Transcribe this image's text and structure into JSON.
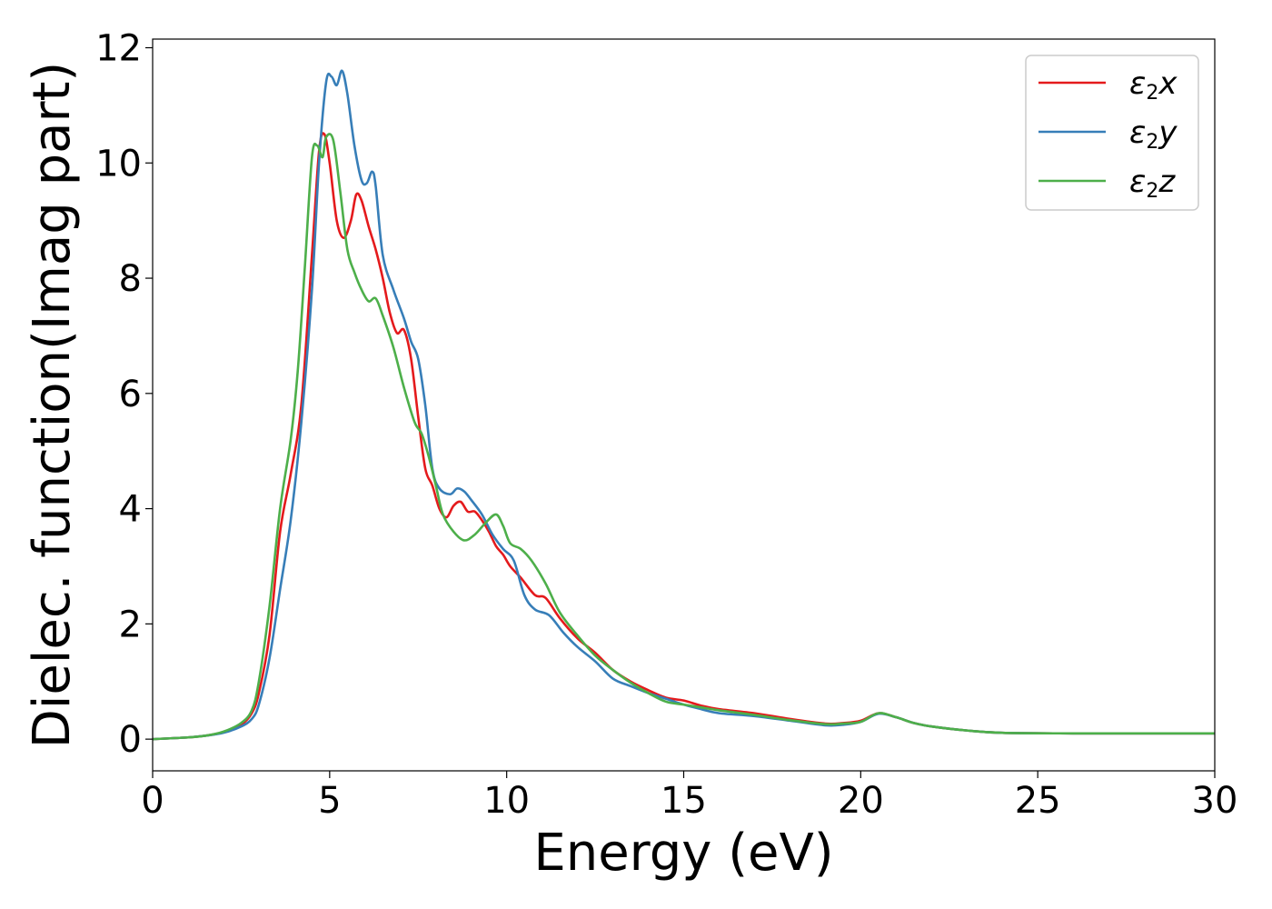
{
  "chart_data": {
    "type": "line",
    "xlabel": "Energy (eV)",
    "ylabel": "Dielec. function(Imag part)",
    "xlim": [
      0,
      30
    ],
    "ylim": [
      -0.55,
      12.15
    ],
    "xticks": [
      0,
      5,
      10,
      15,
      20,
      25,
      30
    ],
    "yticks": [
      0,
      2,
      4,
      6,
      8,
      10,
      12
    ],
    "grid": false,
    "legend_position": "top-right",
    "series": [
      {
        "name": "ε2x",
        "label_base": "ε",
        "label_sub": "2",
        "label_suffix": "x",
        "color": "#e41a1c",
        "points": [
          [
            0,
            0
          ],
          [
            1,
            0.03
          ],
          [
            1.5,
            0.06
          ],
          [
            2,
            0.12
          ],
          [
            2.5,
            0.25
          ],
          [
            2.8,
            0.45
          ],
          [
            3.0,
            0.8
          ],
          [
            3.3,
            1.8
          ],
          [
            3.6,
            3.6
          ],
          [
            3.9,
            4.6
          ],
          [
            4.2,
            5.8
          ],
          [
            4.5,
            8.4
          ],
          [
            4.7,
            10.2
          ],
          [
            4.85,
            10.5
          ],
          [
            5.0,
            10.0
          ],
          [
            5.2,
            9.0
          ],
          [
            5.4,
            8.7
          ],
          [
            5.6,
            9.0
          ],
          [
            5.75,
            9.45
          ],
          [
            5.9,
            9.35
          ],
          [
            6.1,
            8.9
          ],
          [
            6.3,
            8.5
          ],
          [
            6.5,
            8.0
          ],
          [
            6.7,
            7.4
          ],
          [
            6.9,
            7.05
          ],
          [
            7.1,
            7.1
          ],
          [
            7.3,
            6.6
          ],
          [
            7.5,
            5.6
          ],
          [
            7.7,
            4.7
          ],
          [
            7.9,
            4.4
          ],
          [
            8.1,
            4.0
          ],
          [
            8.3,
            3.85
          ],
          [
            8.5,
            4.05
          ],
          [
            8.7,
            4.12
          ],
          [
            8.9,
            3.95
          ],
          [
            9.1,
            3.95
          ],
          [
            9.3,
            3.8
          ],
          [
            9.5,
            3.6
          ],
          [
            9.7,
            3.35
          ],
          [
            9.9,
            3.2
          ],
          [
            10.1,
            3.0
          ],
          [
            10.4,
            2.8
          ],
          [
            10.8,
            2.5
          ],
          [
            11.1,
            2.45
          ],
          [
            11.5,
            2.1
          ],
          [
            12,
            1.75
          ],
          [
            12.5,
            1.5
          ],
          [
            13,
            1.2
          ],
          [
            13.5,
            1.0
          ],
          [
            14,
            0.85
          ],
          [
            14.5,
            0.72
          ],
          [
            15,
            0.67
          ],
          [
            15.5,
            0.58
          ],
          [
            16,
            0.52
          ],
          [
            17,
            0.45
          ],
          [
            18,
            0.35
          ],
          [
            19,
            0.27
          ],
          [
            19.5,
            0.28
          ],
          [
            20,
            0.32
          ],
          [
            20.5,
            0.45
          ],
          [
            21,
            0.38
          ],
          [
            21.5,
            0.28
          ],
          [
            22,
            0.22
          ],
          [
            23,
            0.15
          ],
          [
            24,
            0.11
          ],
          [
            26,
            0.1
          ],
          [
            28,
            0.1
          ],
          [
            30,
            0.1
          ]
        ]
      },
      {
        "name": "ε2y",
        "label_base": "ε",
        "label_sub": "2",
        "label_suffix": "y",
        "color": "#377eb8",
        "points": [
          [
            0,
            0
          ],
          [
            1,
            0.03
          ],
          [
            1.5,
            0.06
          ],
          [
            2,
            0.11
          ],
          [
            2.5,
            0.22
          ],
          [
            2.8,
            0.35
          ],
          [
            3.0,
            0.6
          ],
          [
            3.3,
            1.4
          ],
          [
            3.6,
            2.6
          ],
          [
            3.9,
            3.8
          ],
          [
            4.2,
            5.5
          ],
          [
            4.5,
            7.8
          ],
          [
            4.7,
            10.0
          ],
          [
            4.9,
            11.4
          ],
          [
            5.05,
            11.5
          ],
          [
            5.2,
            11.35
          ],
          [
            5.35,
            11.6
          ],
          [
            5.5,
            11.2
          ],
          [
            5.7,
            10.3
          ],
          [
            5.9,
            9.7
          ],
          [
            6.05,
            9.65
          ],
          [
            6.2,
            9.85
          ],
          [
            6.3,
            9.6
          ],
          [
            6.5,
            8.4
          ],
          [
            6.8,
            7.8
          ],
          [
            7.1,
            7.3
          ],
          [
            7.3,
            6.9
          ],
          [
            7.5,
            6.6
          ],
          [
            7.7,
            5.8
          ],
          [
            7.9,
            4.7
          ],
          [
            8.1,
            4.35
          ],
          [
            8.4,
            4.25
          ],
          [
            8.6,
            4.35
          ],
          [
            8.8,
            4.3
          ],
          [
            9.0,
            4.15
          ],
          [
            9.3,
            3.9
          ],
          [
            9.6,
            3.55
          ],
          [
            9.9,
            3.3
          ],
          [
            10.2,
            3.1
          ],
          [
            10.5,
            2.5
          ],
          [
            10.8,
            2.25
          ],
          [
            11.2,
            2.15
          ],
          [
            11.6,
            1.85
          ],
          [
            12,
            1.6
          ],
          [
            12.5,
            1.35
          ],
          [
            13,
            1.05
          ],
          [
            13.5,
            0.92
          ],
          [
            14,
            0.8
          ],
          [
            14.5,
            0.7
          ],
          [
            15,
            0.6
          ],
          [
            15.5,
            0.52
          ],
          [
            16,
            0.45
          ],
          [
            17,
            0.4
          ],
          [
            18,
            0.32
          ],
          [
            19,
            0.24
          ],
          [
            19.5,
            0.25
          ],
          [
            20,
            0.3
          ],
          [
            20.5,
            0.44
          ],
          [
            21,
            0.38
          ],
          [
            21.5,
            0.28
          ],
          [
            22,
            0.22
          ],
          [
            23,
            0.15
          ],
          [
            24,
            0.11
          ],
          [
            26,
            0.1
          ],
          [
            28,
            0.1
          ],
          [
            30,
            0.1
          ]
        ]
      },
      {
        "name": "ε2z",
        "label_base": "ε",
        "label_sub": "2",
        "label_suffix": "z",
        "color": "#4daf4a",
        "points": [
          [
            0,
            0
          ],
          [
            1,
            0.03
          ],
          [
            1.5,
            0.06
          ],
          [
            2,
            0.13
          ],
          [
            2.5,
            0.28
          ],
          [
            2.8,
            0.5
          ],
          [
            3.0,
            1.0
          ],
          [
            3.3,
            2.3
          ],
          [
            3.6,
            4.0
          ],
          [
            3.9,
            5.2
          ],
          [
            4.1,
            6.4
          ],
          [
            4.3,
            8.2
          ],
          [
            4.5,
            10.1
          ],
          [
            4.65,
            10.3
          ],
          [
            4.8,
            10.1
          ],
          [
            4.9,
            10.45
          ],
          [
            5.1,
            10.4
          ],
          [
            5.3,
            9.5
          ],
          [
            5.5,
            8.5
          ],
          [
            5.7,
            8.1
          ],
          [
            5.9,
            7.8
          ],
          [
            6.1,
            7.6
          ],
          [
            6.3,
            7.65
          ],
          [
            6.5,
            7.35
          ],
          [
            6.8,
            6.8
          ],
          [
            7.1,
            6.1
          ],
          [
            7.4,
            5.5
          ],
          [
            7.6,
            5.3
          ],
          [
            7.8,
            4.9
          ],
          [
            8.0,
            4.4
          ],
          [
            8.2,
            3.9
          ],
          [
            8.5,
            3.6
          ],
          [
            8.8,
            3.45
          ],
          [
            9.1,
            3.55
          ],
          [
            9.4,
            3.75
          ],
          [
            9.7,
            3.9
          ],
          [
            9.9,
            3.7
          ],
          [
            10.1,
            3.4
          ],
          [
            10.4,
            3.3
          ],
          [
            10.7,
            3.1
          ],
          [
            11.1,
            2.7
          ],
          [
            11.5,
            2.2
          ],
          [
            12,
            1.8
          ],
          [
            12.5,
            1.45
          ],
          [
            13,
            1.2
          ],
          [
            13.5,
            0.98
          ],
          [
            14,
            0.8
          ],
          [
            14.5,
            0.65
          ],
          [
            15,
            0.6
          ],
          [
            15.5,
            0.55
          ],
          [
            16,
            0.5
          ],
          [
            17,
            0.42
          ],
          [
            18,
            0.33
          ],
          [
            19,
            0.26
          ],
          [
            19.5,
            0.27
          ],
          [
            20,
            0.3
          ],
          [
            20.5,
            0.45
          ],
          [
            21,
            0.38
          ],
          [
            21.5,
            0.28
          ],
          [
            22,
            0.22
          ],
          [
            23,
            0.15
          ],
          [
            24,
            0.11
          ],
          [
            26,
            0.1
          ],
          [
            28,
            0.1
          ],
          [
            30,
            0.1
          ]
        ]
      }
    ]
  }
}
